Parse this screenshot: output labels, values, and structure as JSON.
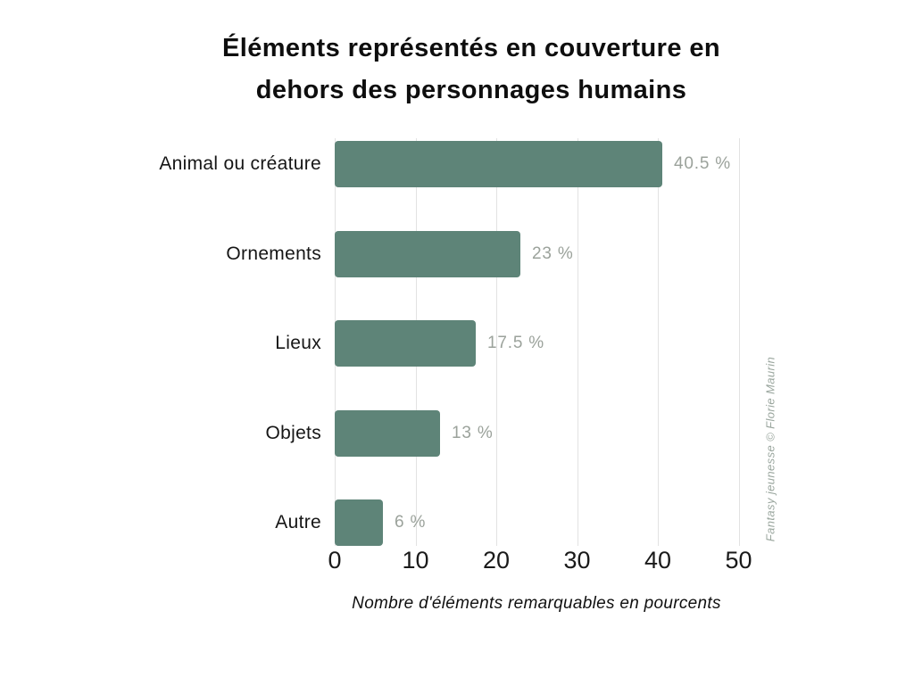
{
  "header": {
    "title_line1": "Éléments représentés en couverture en",
    "title_line2": "dehors des personnages humains"
  },
  "chart_data": {
    "type": "bar",
    "orientation": "horizontal",
    "title": "Éléments représentés en couverture en dehors des personnages humains",
    "categories": [
      "Animal ou créature",
      "Ornements",
      "Lieux",
      "Objets",
      "Autre"
    ],
    "values": [
      40.5,
      23,
      17.5,
      13,
      6
    ],
    "value_labels": [
      "40.5 %",
      "23 %",
      "17.5 %",
      "13 %",
      "6 %"
    ],
    "xlabel": "Nombre d'éléments remarquables en pourcents",
    "ylabel": "",
    "xticks": [
      0,
      10,
      20,
      30,
      40,
      50
    ],
    "xlim": [
      0,
      50
    ],
    "grid": "vertical-gridlines-on",
    "legend": "none",
    "bar_color": "#5E8478",
    "value_label_color": "#9BA29B",
    "gridline_color": "#E2E2E2"
  },
  "credit": "Fantasy jeunesse © Florie Maurin"
}
